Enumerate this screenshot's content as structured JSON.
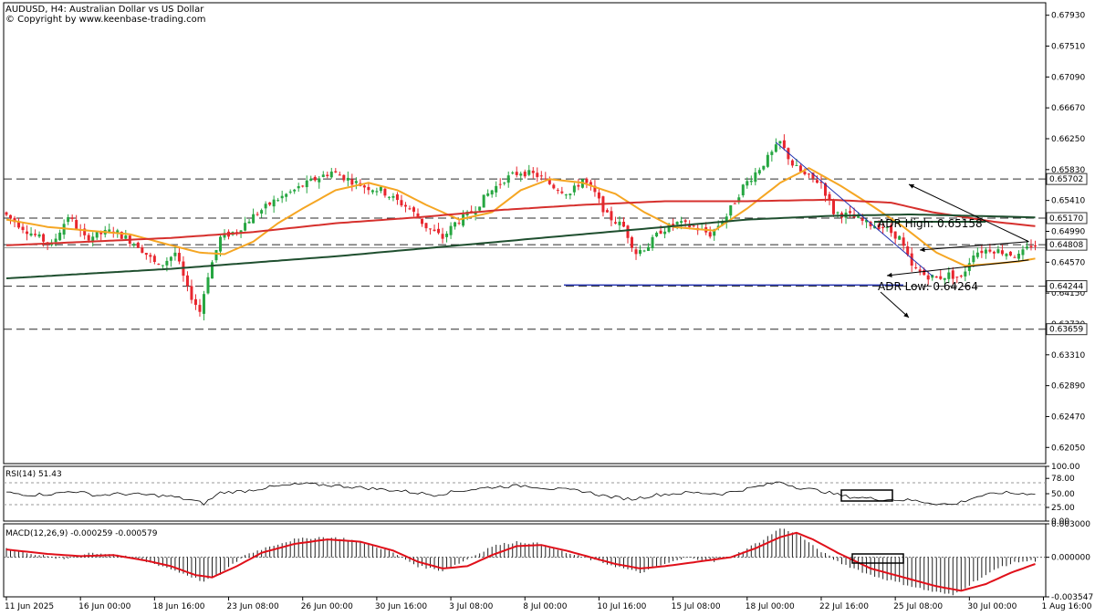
{
  "header": {
    "symbol_line": "AUDUSD, H4:  Australian Dollar vs US Dollar",
    "copyright": "© Copyright by www.keenbase-trading.com"
  },
  "colors": {
    "bull": "#26a641",
    "bear": "#e8262e",
    "sma_fast": "#f5a623",
    "sma_mid": "#d6302d",
    "sma_slow": "#1f4f2f",
    "trendline": "#1f2fb0",
    "hline": "#2c2c2c",
    "macd_signal": "#e0101a"
  },
  "chart_data": [
    {
      "type": "candlestick",
      "name": "price",
      "ylim": [
        0.6183,
        0.681
      ],
      "ticks": [
        "0.67930",
        "0.67510",
        "0.67090",
        "0.66670",
        "0.66250",
        "0.65830",
        "0.65410",
        "0.64990",
        "0.64570",
        "0.64150",
        "0.63730",
        "0.63310",
        "0.62890",
        "0.62470",
        "0.62050"
      ],
      "x_labels": [
        "11 Jun 2025",
        "16 Jun 00:00",
        "18 Jun 16:00",
        "23 Jun 08:00",
        "26 Jun 00:00",
        "30 Jun 16:00",
        "3 Jul 08:00",
        "8 Jul 00:00",
        "10 Jul 16:00",
        "15 Jul 08:00",
        "18 Jul 00:00",
        "22 Jul 16:00",
        "25 Jul 08:00",
        "30 Jul 00:00",
        "1 Aug 16:00"
      ],
      "price_anchors": [
        [
          0,
          0.6525
        ],
        [
          6,
          0.65
        ],
        [
          12,
          0.648
        ],
        [
          16,
          0.652
        ],
        [
          20,
          0.649
        ],
        [
          27,
          0.65
        ],
        [
          33,
          0.648
        ],
        [
          38,
          0.645
        ],
        [
          42,
          0.647
        ],
        [
          45,
          0.642
        ],
        [
          48,
          0.639
        ],
        [
          50,
          0.644
        ],
        [
          53,
          0.649
        ],
        [
          57,
          0.65
        ],
        [
          61,
          0.652
        ],
        [
          66,
          0.654
        ],
        [
          71,
          0.6555
        ],
        [
          76,
          0.657
        ],
        [
          80,
          0.658
        ],
        [
          84,
          0.657
        ],
        [
          88,
          0.656
        ],
        [
          92,
          0.6555
        ],
        [
          96,
          0.654
        ],
        [
          99,
          0.653
        ],
        [
          103,
          0.6505
        ],
        [
          107,
          0.649
        ],
        [
          110,
          0.651
        ],
        [
          114,
          0.6525
        ],
        [
          118,
          0.655
        ],
        [
          122,
          0.657
        ],
        [
          126,
          0.658
        ],
        [
          130,
          0.6575
        ],
        [
          134,
          0.656
        ],
        [
          138,
          0.655
        ],
        [
          141,
          0.657
        ],
        [
          144,
          0.655
        ],
        [
          147,
          0.652
        ],
        [
          151,
          0.6505
        ],
        [
          154,
          0.647
        ],
        [
          157,
          0.648
        ],
        [
          160,
          0.65
        ],
        [
          164,
          0.651
        ],
        [
          168,
          0.6505
        ],
        [
          172,
          0.6495
        ],
        [
          176,
          0.652
        ],
        [
          180,
          0.656
        ],
        [
          184,
          0.6585
        ],
        [
          187,
          0.6605
        ],
        [
          189,
          0.662
        ],
        [
          192,
          0.659
        ],
        [
          195,
          0.6575
        ],
        [
          199,
          0.6565
        ],
        [
          202,
          0.6525
        ],
        [
          206,
          0.652
        ],
        [
          210,
          0.651
        ],
        [
          214,
          0.6505
        ],
        [
          218,
          0.649
        ],
        [
          221,
          0.645
        ],
        [
          224,
          0.644
        ],
        [
          227,
          0.6435
        ],
        [
          230,
          0.644
        ],
        [
          233,
          0.6435
        ],
        [
          236,
          0.647
        ],
        [
          240,
          0.6475
        ],
        [
          244,
          0.647
        ],
        [
          247,
          0.6465
        ],
        [
          250,
          0.648
        ]
      ],
      "moving_averages": [
        {
          "name": "sma_fast",
          "anchors": [
            [
              0,
              0.6515
            ],
            [
              10,
              0.6505
            ],
            [
              20,
              0.65
            ],
            [
              30,
              0.6495
            ],
            [
              40,
              0.648
            ],
            [
              47,
              0.647
            ],
            [
              53,
              0.6468
            ],
            [
              60,
              0.6485
            ],
            [
              66,
              0.651
            ],
            [
              72,
              0.653
            ],
            [
              80,
              0.6555
            ],
            [
              88,
              0.6565
            ],
            [
              95,
              0.6555
            ],
            [
              102,
              0.6535
            ],
            [
              110,
              0.6515
            ],
            [
              118,
              0.6525
            ],
            [
              125,
              0.6555
            ],
            [
              132,
              0.657
            ],
            [
              140,
              0.6565
            ],
            [
              148,
              0.655
            ],
            [
              155,
              0.6525
            ],
            [
              162,
              0.6505
            ],
            [
              172,
              0.65
            ],
            [
              180,
              0.653
            ],
            [
              188,
              0.6565
            ],
            [
              195,
              0.6585
            ],
            [
              203,
              0.656
            ],
            [
              210,
              0.6535
            ],
            [
              218,
              0.6505
            ],
            [
              226,
              0.647
            ],
            [
              233,
              0.6452
            ],
            [
              240,
              0.6455
            ],
            [
              246,
              0.6458
            ],
            [
              250,
              0.6462
            ]
          ]
        },
        {
          "name": "sma_mid",
          "anchors": [
            [
              0,
              0.648
            ],
            [
              20,
              0.6485
            ],
            [
              40,
              0.649
            ],
            [
              60,
              0.6498
            ],
            [
              80,
              0.651
            ],
            [
              100,
              0.6518
            ],
            [
              120,
              0.6528
            ],
            [
              140,
              0.6535
            ],
            [
              160,
              0.654
            ],
            [
              180,
              0.654
            ],
            [
              200,
              0.6542
            ],
            [
              215,
              0.6538
            ],
            [
              225,
              0.6525
            ],
            [
              240,
              0.6512
            ],
            [
              250,
              0.6506
            ]
          ]
        },
        {
          "name": "sma_slow",
          "anchors": [
            [
              0,
              0.6435
            ],
            [
              40,
              0.6448
            ],
            [
              80,
              0.6465
            ],
            [
              120,
              0.6485
            ],
            [
              150,
              0.65
            ],
            [
              180,
              0.6515
            ],
            [
              200,
              0.652
            ],
            [
              220,
              0.6522
            ],
            [
              250,
              0.6518
            ]
          ]
        }
      ],
      "hlines": [
        {
          "label": "0.65702",
          "value": 0.65702
        },
        {
          "label": "0.65170",
          "value": 0.6517
        },
        {
          "label": "0.64808",
          "value": 0.64808
        },
        {
          "label": "0.64244",
          "value": 0.64244
        },
        {
          "label": "0.63659",
          "value": 0.63659
        }
      ],
      "current_price": 0.64766,
      "annotations": [
        {
          "text": "ADR High: 0.65158",
          "value": 0.65158
        },
        {
          "text": "ADR Low: 0.64264",
          "value": 0.64264
        }
      ]
    },
    {
      "type": "line",
      "name": "rsi",
      "title": "RSI(14) 51.43",
      "ylim": [
        0,
        100
      ],
      "ticks": [
        "100.00",
        "78.00",
        "50.00",
        "25.00",
        "0.00"
      ],
      "levels": [
        30,
        70
      ],
      "anchors": [
        [
          0,
          52
        ],
        [
          6,
          48
        ],
        [
          12,
          50
        ],
        [
          16,
          55
        ],
        [
          22,
          47
        ],
        [
          28,
          50
        ],
        [
          34,
          48
        ],
        [
          40,
          45
        ],
        [
          45,
          38
        ],
        [
          48,
          32
        ],
        [
          52,
          52
        ],
        [
          58,
          55
        ],
        [
          64,
          62
        ],
        [
          72,
          68
        ],
        [
          80,
          65
        ],
        [
          88,
          60
        ],
        [
          96,
          55
        ],
        [
          104,
          48
        ],
        [
          110,
          55
        ],
        [
          118,
          62
        ],
        [
          126,
          65
        ],
        [
          134,
          58
        ],
        [
          140,
          55
        ],
        [
          146,
          45
        ],
        [
          152,
          40
        ],
        [
          158,
          48
        ],
        [
          166,
          52
        ],
        [
          174,
          50
        ],
        [
          182,
          62
        ],
        [
          188,
          72
        ],
        [
          192,
          62
        ],
        [
          198,
          55
        ],
        [
          204,
          45
        ],
        [
          212,
          40
        ],
        [
          220,
          38
        ],
        [
          226,
          32
        ],
        [
          230,
          30
        ],
        [
          236,
          45
        ],
        [
          242,
          52
        ],
        [
          246,
          50
        ],
        [
          250,
          51
        ]
      ]
    },
    {
      "type": "bar+line",
      "name": "macd",
      "title": "MACD(12,26,9) -0.000259 -0.000579",
      "ylim": [
        -0.003547,
        0.003
      ],
      "ticks": [
        "0.003000",
        "0.000000",
        "-0.003547"
      ],
      "histogram_anchors": [
        [
          0,
          0.0008
        ],
        [
          8,
          0.0002
        ],
        [
          14,
          -0.0002
        ],
        [
          20,
          0.0004
        ],
        [
          26,
          0.0003
        ],
        [
          32,
          -0.0002
        ],
        [
          38,
          -0.0008
        ],
        [
          44,
          -0.0016
        ],
        [
          48,
          -0.0022
        ],
        [
          52,
          -0.0015
        ],
        [
          58,
          0.0002
        ],
        [
          64,
          0.001
        ],
        [
          70,
          0.0016
        ],
        [
          76,
          0.0018
        ],
        [
          82,
          0.0017
        ],
        [
          88,
          0.0012
        ],
        [
          94,
          0.0004
        ],
        [
          100,
          -0.0008
        ],
        [
          106,
          -0.0012
        ],
        [
          112,
          -0.0002
        ],
        [
          118,
          0.001
        ],
        [
          124,
          0.0014
        ],
        [
          130,
          0.0012
        ],
        [
          136,
          0.0004
        ],
        [
          142,
          -0.0002
        ],
        [
          148,
          -0.0008
        ],
        [
          154,
          -0.0014
        ],
        [
          160,
          -0.0006
        ],
        [
          166,
          0.0
        ],
        [
          172,
          -0.0004
        ],
        [
          178,
          0.0004
        ],
        [
          184,
          0.0016
        ],
        [
          188,
          0.0026
        ],
        [
          192,
          0.0022
        ],
        [
          196,
          0.001
        ],
        [
          202,
          -0.0004
        ],
        [
          210,
          -0.0016
        ],
        [
          218,
          -0.0024
        ],
        [
          224,
          -0.003
        ],
        [
          230,
          -0.0034
        ],
        [
          236,
          -0.002
        ],
        [
          242,
          -0.0008
        ],
        [
          246,
          -0.0004
        ],
        [
          250,
          -0.0003
        ]
      ],
      "signal_anchors": [
        [
          0,
          0.0007
        ],
        [
          10,
          0.0003
        ],
        [
          18,
          0.0001
        ],
        [
          26,
          0.0002
        ],
        [
          34,
          -0.0003
        ],
        [
          40,
          -0.0008
        ],
        [
          46,
          -0.0016
        ],
        [
          50,
          -0.0018
        ],
        [
          56,
          -0.0008
        ],
        [
          62,
          0.0004
        ],
        [
          70,
          0.0012
        ],
        [
          78,
          0.0016
        ],
        [
          86,
          0.0014
        ],
        [
          94,
          0.0006
        ],
        [
          100,
          -0.0004
        ],
        [
          106,
          -0.001
        ],
        [
          112,
          -0.0008
        ],
        [
          118,
          0.0002
        ],
        [
          124,
          0.001
        ],
        [
          130,
          0.0011
        ],
        [
          136,
          0.0006
        ],
        [
          142,
          0.0
        ],
        [
          148,
          -0.0006
        ],
        [
          154,
          -0.001
        ],
        [
          160,
          -0.0008
        ],
        [
          168,
          -0.0004
        ],
        [
          176,
          0.0
        ],
        [
          182,
          0.0008
        ],
        [
          188,
          0.0018
        ],
        [
          192,
          0.0022
        ],
        [
          196,
          0.0016
        ],
        [
          202,
          0.0004
        ],
        [
          210,
          -0.001
        ],
        [
          218,
          -0.0018
        ],
        [
          226,
          -0.0026
        ],
        [
          232,
          -0.003
        ],
        [
          238,
          -0.0024
        ],
        [
          244,
          -0.0014
        ],
        [
          250,
          -0.0006
        ]
      ]
    }
  ]
}
